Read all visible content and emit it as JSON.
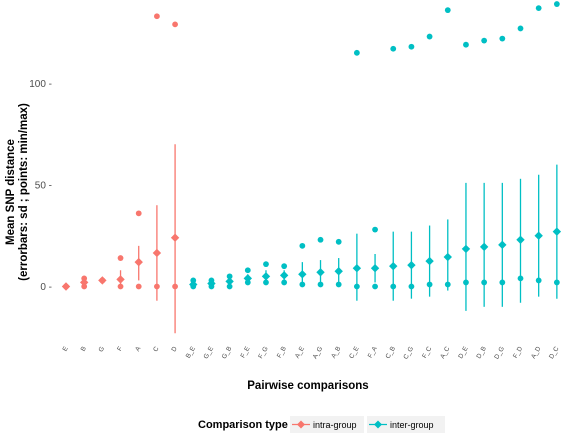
{
  "chart_data": {
    "type": "scatter",
    "xlabel": "Pairwise comparisons",
    "ylabel_line1": "Mean SNP distance",
    "ylabel_line2": "(errorbars: sd ; points: min/max)",
    "ylim": [
      -25,
      140
    ],
    "yticks": [
      0,
      50,
      100
    ],
    "ytick_labels": [
      "0 -",
      "50 -",
      "100 -"
    ],
    "grid": false,
    "legend": {
      "position": "bottom",
      "title": "Comparison type",
      "entries": [
        {
          "label": "intra-group",
          "color": "#F8766D"
        },
        {
          "label": "inter-group",
          "color": "#00BFC4"
        }
      ]
    },
    "categories": [
      "E",
      "B",
      "G",
      "F",
      "A",
      "C",
      "D",
      "B_E",
      "G_E",
      "G_B",
      "F_E",
      "F_G",
      "F_B",
      "A_E",
      "A_G",
      "A_B",
      "C_E",
      "F_A",
      "C_B",
      "C_G",
      "F_C",
      "A_C",
      "D_E",
      "D_B",
      "D_G",
      "F_D",
      "A_D",
      "D_C"
    ],
    "series": [
      {
        "name": "intra-group",
        "color": "#F8766D",
        "points": [
          {
            "x": "E",
            "mean": 0,
            "sd_low": 0,
            "sd_high": 0,
            "min": 0,
            "max": 0
          },
          {
            "x": "B",
            "mean": 2,
            "sd_low": 0,
            "sd_high": 4,
            "min": 0,
            "max": 4
          },
          {
            "x": "G",
            "mean": 3,
            "sd_low": 3,
            "sd_high": 3,
            "min": 3,
            "max": 3
          },
          {
            "x": "F",
            "mean": 3.5,
            "sd_low": 0,
            "sd_high": 8,
            "min": 0,
            "max": 14
          },
          {
            "x": "A",
            "mean": 12,
            "sd_low": 3,
            "sd_high": 20,
            "min": 0,
            "max": 36
          },
          {
            "x": "C",
            "mean": 16.5,
            "sd_low": -7,
            "sd_high": 40,
            "min": 0,
            "max": 133
          },
          {
            "x": "D",
            "mean": 24,
            "sd_low": -23,
            "sd_high": 70,
            "min": 0,
            "max": 129
          }
        ]
      },
      {
        "name": "inter-group",
        "color": "#00BFC4",
        "points": [
          {
            "x": "B_E",
            "mean": 1,
            "sd_low": 0,
            "sd_high": 2,
            "min": 0,
            "max": 3
          },
          {
            "x": "G_E",
            "mean": 1.5,
            "sd_low": 0,
            "sd_high": 3,
            "min": 0,
            "max": 3
          },
          {
            "x": "G_B",
            "mean": 2.5,
            "sd_low": 0,
            "sd_high": 5,
            "min": 0,
            "max": 5
          },
          {
            "x": "F_E",
            "mean": 4,
            "sd_low": 2,
            "sd_high": 6,
            "min": 2,
            "max": 8
          },
          {
            "x": "F_G",
            "mean": 5,
            "sd_low": 2,
            "sd_high": 8,
            "min": 2,
            "max": 11
          },
          {
            "x": "F_B",
            "mean": 5.5,
            "sd_low": 3,
            "sd_high": 8,
            "min": 2,
            "max": 10
          },
          {
            "x": "A_E",
            "mean": 6,
            "sd_low": 0,
            "sd_high": 12,
            "min": 1,
            "max": 20
          },
          {
            "x": "A_G",
            "mean": 7,
            "sd_low": 1,
            "sd_high": 13,
            "min": 1,
            "max": 23
          },
          {
            "x": "A_B",
            "mean": 7.5,
            "sd_low": 1,
            "sd_high": 14,
            "min": 1,
            "max": 22
          },
          {
            "x": "C_E",
            "mean": 9,
            "sd_low": -7,
            "sd_high": 26,
            "min": 0,
            "max": 115
          },
          {
            "x": "F_A",
            "mean": 9,
            "sd_low": 2,
            "sd_high": 16,
            "min": 0,
            "max": 28
          },
          {
            "x": "C_B",
            "mean": 10,
            "sd_low": -7,
            "sd_high": 27,
            "min": 0,
            "max": 117
          },
          {
            "x": "C_G",
            "mean": 10.5,
            "sd_low": -6,
            "sd_high": 27,
            "min": 0,
            "max": 118
          },
          {
            "x": "F_C",
            "mean": 12.5,
            "sd_low": -5,
            "sd_high": 30,
            "min": 1,
            "max": 123
          },
          {
            "x": "A_C",
            "mean": 14.5,
            "sd_low": -2,
            "sd_high": 33,
            "min": 1,
            "max": 136
          },
          {
            "x": "D_E",
            "mean": 18.5,
            "sd_low": -12,
            "sd_high": 51,
            "min": 2,
            "max": 119
          },
          {
            "x": "D_B",
            "mean": 19.5,
            "sd_low": -10,
            "sd_high": 51,
            "min": 2,
            "max": 121
          },
          {
            "x": "D_G",
            "mean": 20.5,
            "sd_low": -10,
            "sd_high": 51,
            "min": 2,
            "max": 122
          },
          {
            "x": "F_D",
            "mean": 23,
            "sd_low": -8,
            "sd_high": 53,
            "min": 4,
            "max": 127
          },
          {
            "x": "A_D",
            "mean": 25,
            "sd_low": -5,
            "sd_high": 55,
            "min": 3,
            "max": 137
          },
          {
            "x": "D_C",
            "mean": 27,
            "sd_low": -6,
            "sd_high": 60,
            "min": 2,
            "max": 139
          }
        ]
      }
    ]
  }
}
